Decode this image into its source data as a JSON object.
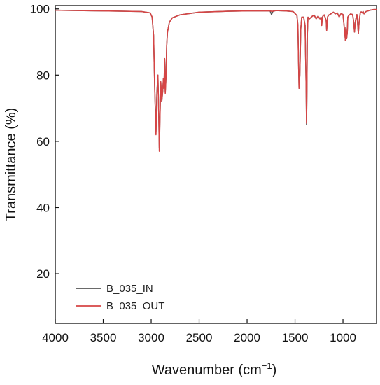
{
  "chart_data": {
    "type": "line",
    "xlabel": "Wavenumber (cm",
    "xlabel_sup": "−1",
    "xlabel_end": ")",
    "ylabel": "Transmittance (%)",
    "xlim": [
      4000,
      650
    ],
    "ylim": [
      5,
      101
    ],
    "x_ticks": [
      4000,
      3500,
      3000,
      2500,
      2000,
      1500,
      1000
    ],
    "x_tick_labels": [
      "4000",
      "3500",
      "3000",
      "2500",
      "2000",
      "1500",
      "1000"
    ],
    "y_ticks": [
      20,
      40,
      60,
      80,
      100
    ],
    "y_tick_labels": [
      "20",
      "40",
      "60",
      "80",
      "100"
    ],
    "grid": false,
    "legend_position": "bottom-left",
    "series": [
      {
        "name": "B_035_IN",
        "color": "#555555",
        "x": [
          4000,
          3500,
          3100,
          3010,
          2990,
          2975,
          2962,
          2955,
          2950,
          2940,
          2930,
          2922,
          2915,
          2908,
          2900,
          2890,
          2880,
          2872,
          2866,
          2860,
          2853,
          2846,
          2838,
          2830,
          2810,
          2780,
          2700,
          2500,
          2200,
          2000,
          1760,
          1745,
          1730,
          1700,
          1600,
          1520,
          1480,
          1470,
          1464,
          1458,
          1450,
          1440,
          1430,
          1410,
          1395,
          1385,
          1380,
          1376,
          1372,
          1365,
          1350,
          1320,
          1300,
          1280,
          1260,
          1240,
          1230,
          1222,
          1215,
          1205,
          1195,
          1175,
          1170,
          1166,
          1160,
          1150,
          1120,
          1100,
          1080,
          1060,
          1040,
          1020,
          1000,
          985,
          975,
          970,
          962,
          955,
          950,
          940,
          920,
          900,
          890,
          880,
          870,
          855,
          848,
          840,
          832,
          820,
          810,
          800,
          790,
          780,
          770,
          760,
          740,
          720,
          700,
          680,
          650
        ],
        "y": [
          99.6,
          99.4,
          99.2,
          98.8,
          97.5,
          92,
          75,
          68,
          63,
          75,
          80,
          70,
          58,
          68,
          78,
          72,
          75,
          79,
          76,
          85,
          75,
          79,
          89,
          93,
          96,
          97.3,
          98.2,
          99.0,
          99.3,
          99.4,
          99.4,
          98.3,
          99.3,
          99.5,
          99.4,
          99.2,
          98,
          95,
          85,
          76,
          80,
          94,
          97.5,
          97.5,
          95,
          78,
          65,
          75,
          92,
          97.5,
          97,
          97.8,
          98.1,
          97,
          97.8,
          97,
          97.5,
          95,
          97.5,
          98,
          98.2,
          96.5,
          93.5,
          95.5,
          97.6,
          98.1,
          98.6,
          99,
          98.5,
          98.8,
          97.6,
          98.6,
          98.3,
          94,
          90.5,
          94.5,
          91,
          93,
          97.5,
          98,
          98.5,
          98.3,
          96.5,
          93,
          96.5,
          98.3,
          96,
          92.5,
          96,
          98.7,
          99.1,
          98.8,
          99.2,
          98.5,
          98.9,
          99.2,
          99.4,
          99.6,
          99.7,
          99.8,
          99.8
        ]
      },
      {
        "name": "B_035_OUT",
        "color": "#d64545",
        "x": [
          4000,
          3500,
          3100,
          3010,
          2990,
          2975,
          2962,
          2955,
          2950,
          2940,
          2930,
          2922,
          2915,
          2908,
          2900,
          2890,
          2880,
          2872,
          2866,
          2860,
          2853,
          2846,
          2838,
          2830,
          2810,
          2780,
          2700,
          2500,
          2200,
          2000,
          1760,
          1745,
          1730,
          1700,
          1600,
          1520,
          1480,
          1470,
          1464,
          1458,
          1450,
          1440,
          1430,
          1410,
          1395,
          1385,
          1380,
          1376,
          1372,
          1365,
          1350,
          1320,
          1300,
          1280,
          1260,
          1240,
          1230,
          1222,
          1215,
          1205,
          1195,
          1175,
          1170,
          1166,
          1160,
          1150,
          1120,
          1100,
          1080,
          1060,
          1040,
          1020,
          1000,
          985,
          975,
          970,
          962,
          955,
          950,
          940,
          920,
          900,
          890,
          880,
          870,
          855,
          848,
          840,
          832,
          820,
          810,
          800,
          790,
          780,
          770,
          760,
          740,
          720,
          700,
          680,
          650
        ],
        "y": [
          99.6,
          99.4,
          99.2,
          98.8,
          97.5,
          92,
          75,
          67.5,
          62,
          74,
          80,
          70,
          57,
          67,
          78,
          72,
          75,
          79,
          76,
          85,
          74.5,
          79,
          89,
          93,
          96,
          97.3,
          98.2,
          99.0,
          99.3,
          99.4,
          99.4,
          99.3,
          99.3,
          99.5,
          99.4,
          99.2,
          98,
          95,
          85,
          76,
          80,
          94,
          97.5,
          97.5,
          95,
          78,
          65.5,
          75,
          92,
          97.5,
          97,
          97.8,
          98.1,
          97,
          97.8,
          97,
          97.5,
          95,
          97.5,
          98,
          98.2,
          96.5,
          93.5,
          95.5,
          97.6,
          98.1,
          98.6,
          99,
          98.5,
          98.8,
          97.6,
          98.6,
          98.3,
          94,
          90.5,
          94.5,
          91,
          93,
          97.5,
          98,
          98.5,
          98.3,
          96.5,
          93,
          96.5,
          98.3,
          96,
          92.5,
          96,
          98.7,
          99.1,
          98.8,
          99.2,
          98.5,
          98.9,
          99.2,
          99.4,
          99.6,
          99.7,
          99.8,
          99.8
        ]
      }
    ]
  }
}
